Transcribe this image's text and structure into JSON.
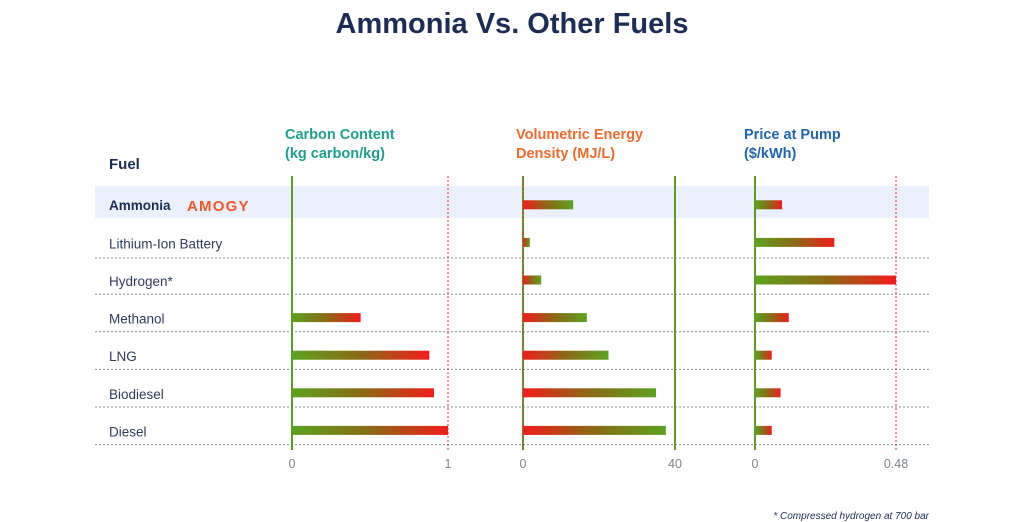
{
  "chart_data": {
    "type": "bar",
    "orientation": "horizontal",
    "title": "Ammonia Vs. Other Fuels",
    "category_header": "Fuel",
    "categories": [
      "Ammonia",
      "Lithium-Ion Battery",
      "Hydrogen*",
      "Methanol",
      "LNG",
      "Biodiesel",
      "Diesel"
    ],
    "highlight": {
      "category": "Ammonia",
      "logo_text": "AMOGY"
    },
    "panels": [
      {
        "title": [
          "Carbon Content",
          "(kg carbon/kg)"
        ],
        "title_color": "#1f9e8d",
        "xlim": [
          0,
          1
        ],
        "tick_labels": [
          "0",
          "1"
        ],
        "values": [
          0,
          0,
          0,
          0.44,
          0.88,
          0.91,
          1.0
        ]
      },
      {
        "title": [
          "Volumetric Energy",
          "Density (MJ/L)"
        ],
        "title_color": "#f26b2e",
        "xlim": [
          0,
          40
        ],
        "tick_labels": [
          "0",
          "40"
        ],
        "values": [
          13.2,
          1.8,
          4.8,
          16.8,
          22.5,
          35.0,
          37.6
        ]
      },
      {
        "title": [
          "Price at Pump",
          "($/kWh)"
        ],
        "title_color": "#2166ad",
        "xlim": [
          0,
          0.48
        ],
        "tick_labels": [
          "0",
          "0.48"
        ],
        "values": [
          0.092,
          0.27,
          0.48,
          0.115,
          0.057,
          0.087,
          0.057
        ]
      }
    ],
    "colors": {
      "low": "#5ca320",
      "high": "#f21c1c",
      "axis": "#5e9b26",
      "reference": "#e53030"
    },
    "footnote": "* Compressed hydrogen at 700 bar"
  }
}
